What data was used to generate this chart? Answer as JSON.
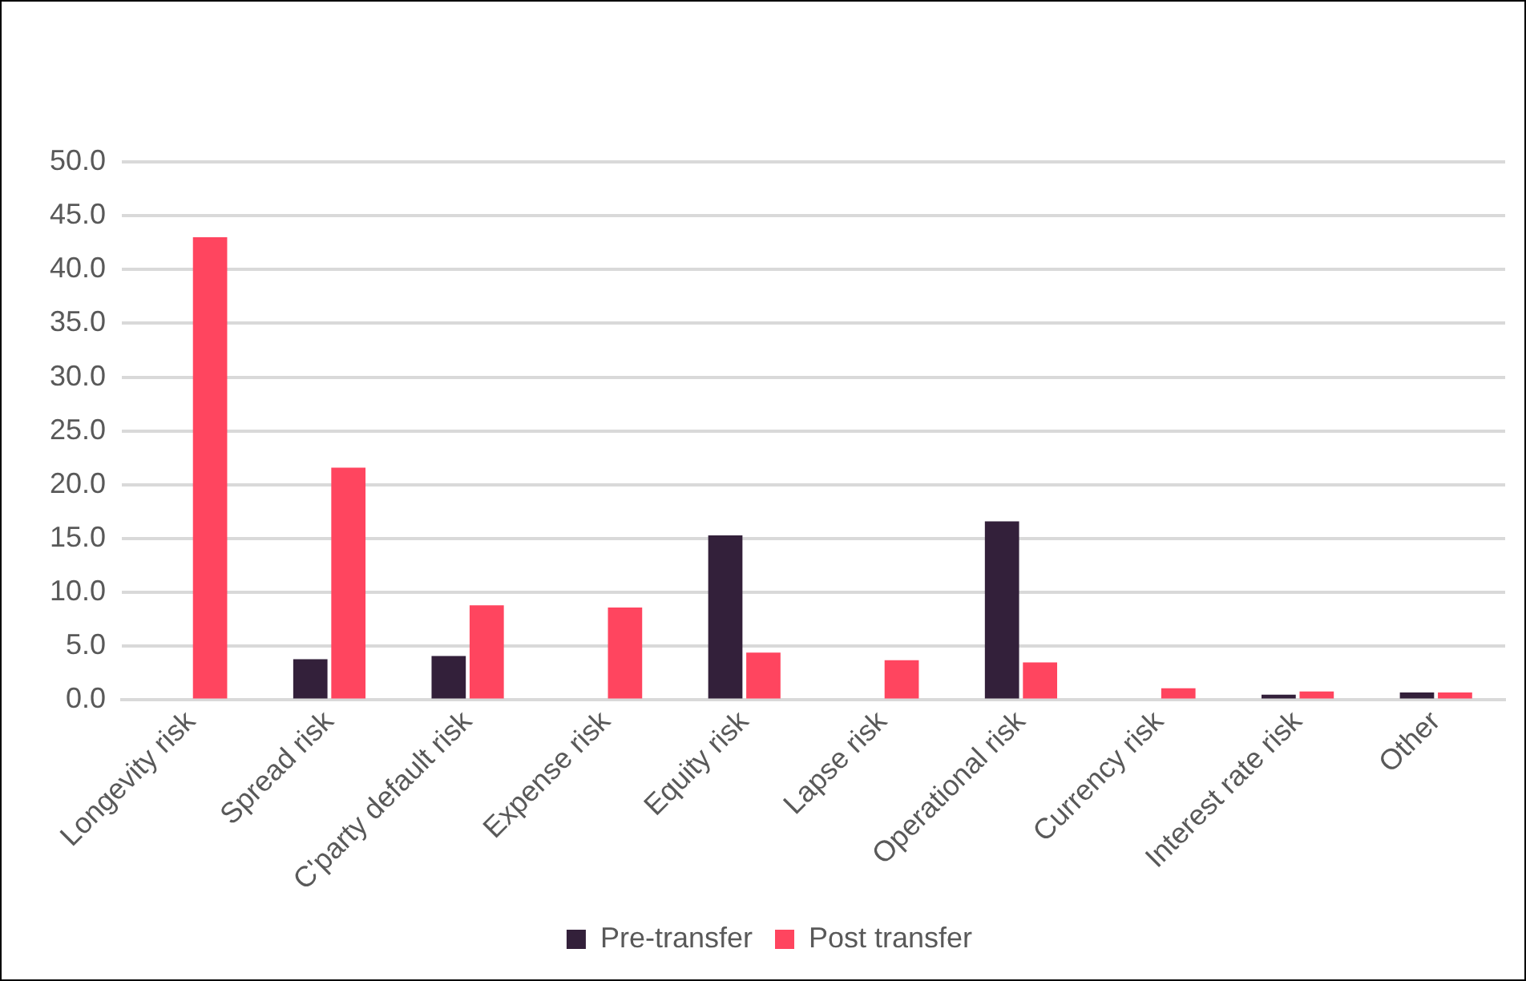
{
  "chart_data": {
    "type": "bar",
    "categories": [
      "Longevity risk",
      "Spread risk",
      "C'party default risk",
      "Expense risk",
      "Equity risk",
      "Lapse risk",
      "Operational risk",
      "Currency risk",
      "Interest rate risk",
      "Other"
    ],
    "series": [
      {
        "name": "Pre-transfer",
        "color": "#33203a",
        "values": [
          0,
          3.8,
          4.1,
          0,
          15.3,
          0,
          16.6,
          0,
          0.5,
          0.7
        ]
      },
      {
        "name": "Post transfer",
        "color": "#ff455f",
        "values": [
          43.0,
          21.6,
          8.8,
          8.6,
          4.4,
          3.7,
          3.5,
          1.1,
          0.8,
          0.7
        ]
      }
    ],
    "ylim": [
      0,
      50
    ],
    "yticks": [
      {
        "value": 0,
        "label": "0.0"
      },
      {
        "value": 5,
        "label": "5.0"
      },
      {
        "value": 10,
        "label": "10.0"
      },
      {
        "value": 15,
        "label": "15.0"
      },
      {
        "value": 20,
        "label": "20.0"
      },
      {
        "value": 25,
        "label": "25.0"
      },
      {
        "value": 30,
        "label": "30.0"
      },
      {
        "value": 35,
        "label": "35.0"
      },
      {
        "value": 40,
        "label": "40.0"
      },
      {
        "value": 45,
        "label": "45.0"
      },
      {
        "value": 50,
        "label": "50.0"
      }
    ],
    "grid": "y",
    "legend": "bottom"
  }
}
